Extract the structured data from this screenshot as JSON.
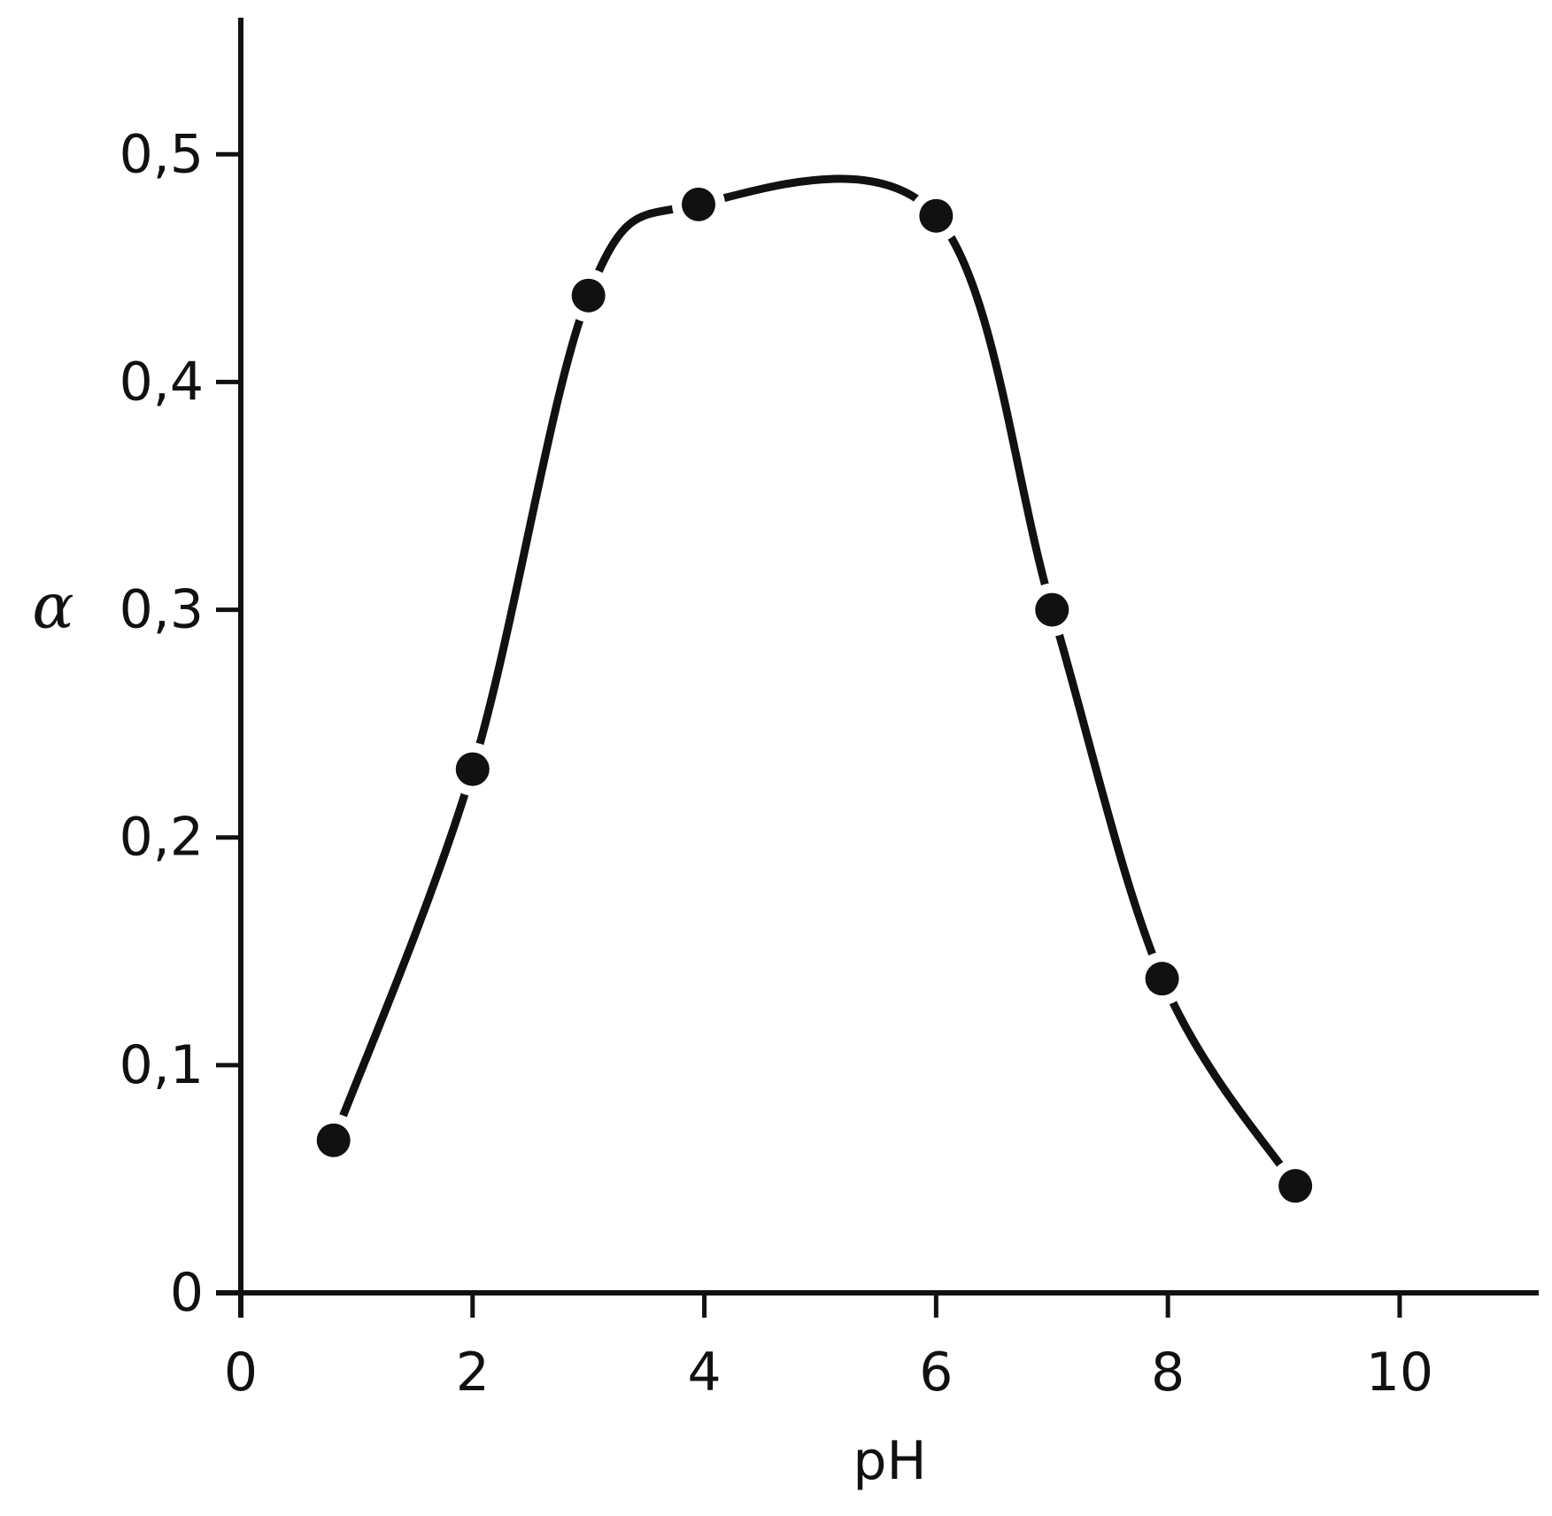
{
  "chart_data": {
    "type": "line",
    "title": "",
    "xlabel": "pH",
    "ylabel": "α",
    "xlim": [
      0,
      11.2
    ],
    "ylim": [
      0,
      0.56
    ],
    "x_ticks": [
      0,
      2,
      4,
      6,
      8,
      10
    ],
    "x_tick_labels": [
      "0",
      "2",
      "4",
      "6",
      "8",
      "10"
    ],
    "y_ticks": [
      0,
      0.1,
      0.2,
      0.3,
      0.4,
      0.5
    ],
    "y_tick_labels": [
      "0",
      "0,1",
      "0,2",
      "0,3",
      "0,4",
      "0,5"
    ],
    "grid": false,
    "legend": "none",
    "colors": {
      "ink": "#111111",
      "background": "#ffffff"
    },
    "series": [
      {
        "x": [
          0.8,
          2.0,
          3.0,
          3.95,
          6.0,
          7.0,
          7.95,
          9.1
        ],
        "y": [
          0.067,
          0.23,
          0.438,
          0.478,
          0.473,
          0.3,
          0.138,
          0.047
        ],
        "marker": "filled-circle",
        "line": "smooth"
      }
    ]
  }
}
